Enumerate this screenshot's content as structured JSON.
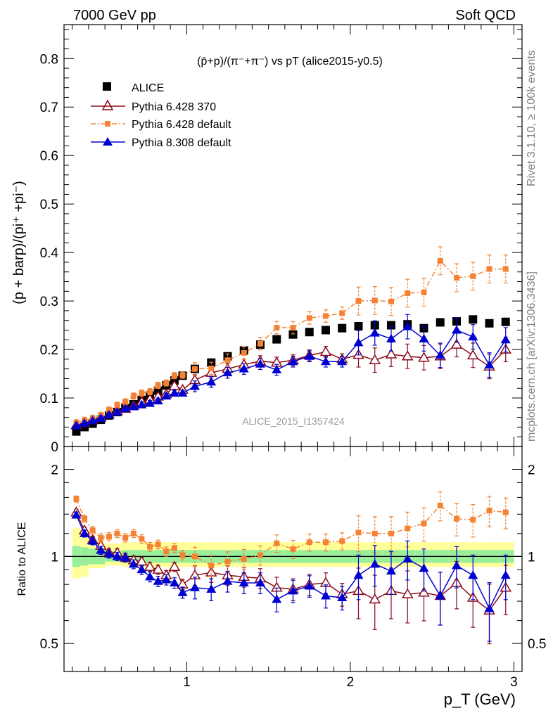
{
  "header": {
    "left": "7000 GeV pp",
    "right": "Soft QCD"
  },
  "side": {
    "rivet": "Rivet 3.1.10, ≥ 100k events",
    "mcplots": "mcplots.cern.ch [arXiv:1306.3436]"
  },
  "watermark": "ALICE_2015_I1357424",
  "legend": {
    "alice": "ALICE",
    "p6370": "Pythia 6.428 370",
    "p6def": "Pythia 6.428 default",
    "p8": "Pythia 8.308 default"
  },
  "colors": {
    "alice": "#000000",
    "p6370": "#8b0a1a",
    "p6def": "#f58232",
    "p8": "#0000d0",
    "band_inner": "#99ee99",
    "band_outer": "#ffff99"
  },
  "chart_data": [
    {
      "type": "scatter",
      "title": "(p̄+p)/(π⁻+π⁻) vs pT (alice2015-y0.5)",
      "xlabel": "p_T (GeV)",
      "ylabel": "(p + barp)/(pi⁺ +pi⁻)",
      "xlim": [
        0.25,
        3.05
      ],
      "ylim": [
        0,
        0.87
      ],
      "yticks": [
        0,
        0.1,
        0.2,
        0.3,
        0.4,
        0.5,
        0.6,
        0.7,
        0.8
      ],
      "ytick_labels": [
        "0",
        "0.1",
        "0.2",
        "0.3",
        "0.4",
        "0.5",
        "0.6",
        "0.7",
        "0.8"
      ],
      "legend_position": "top-left",
      "x": [
        0.325,
        0.375,
        0.425,
        0.475,
        0.525,
        0.575,
        0.625,
        0.675,
        0.725,
        0.775,
        0.825,
        0.875,
        0.925,
        0.975,
        1.05,
        1.15,
        1.25,
        1.35,
        1.45,
        1.55,
        1.65,
        1.75,
        1.85,
        1.95,
        2.05,
        2.15,
        2.25,
        2.35,
        2.45,
        2.55,
        2.65,
        2.75,
        2.85,
        2.95
      ],
      "series": [
        {
          "name": "ALICE",
          "values": [
            0.031,
            0.04,
            0.047,
            0.055,
            0.064,
            0.071,
            0.079,
            0.087,
            0.096,
            0.105,
            0.115,
            0.126,
            0.136,
            0.146,
            0.16,
            0.173,
            0.186,
            0.198,
            0.21,
            0.221,
            0.231,
            0.236,
            0.24,
            0.244,
            0.248,
            0.25,
            0.25,
            0.252,
            0.244,
            0.256,
            0.258,
            0.262,
            0.254,
            0.257
          ]
        },
        {
          "name": "Pythia 6.428 370",
          "values": [
            0.044,
            0.049,
            0.054,
            0.06,
            0.066,
            0.073,
            0.078,
            0.084,
            0.092,
            0.097,
            0.103,
            0.108,
            0.125,
            0.117,
            0.137,
            0.152,
            0.16,
            0.169,
            0.176,
            0.173,
            0.178,
            0.188,
            0.195,
            0.18,
            0.189,
            0.178,
            0.19,
            0.186,
            0.183,
            0.186,
            0.21,
            0.188,
            0.165,
            0.2
          ]
        },
        {
          "name": "Pythia 6.428 default",
          "values": [
            0.049,
            0.054,
            0.058,
            0.064,
            0.075,
            0.085,
            0.092,
            0.104,
            0.11,
            0.113,
            0.126,
            0.131,
            0.146,
            0.147,
            0.16,
            0.161,
            0.178,
            0.193,
            0.212,
            0.245,
            0.245,
            0.265,
            0.269,
            0.275,
            0.3,
            0.301,
            0.299,
            0.316,
            0.318,
            0.383,
            0.348,
            0.351,
            0.366,
            0.366
          ]
        },
        {
          "name": "Pythia 8.308 default",
          "values": [
            0.043,
            0.048,
            0.053,
            0.058,
            0.065,
            0.071,
            0.078,
            0.082,
            0.086,
            0.089,
            0.094,
            0.104,
            0.11,
            0.11,
            0.124,
            0.133,
            0.152,
            0.16,
            0.17,
            0.158,
            0.175,
            0.186,
            0.175,
            0.175,
            0.214,
            0.234,
            0.222,
            0.247,
            0.222,
            0.188,
            0.24,
            0.226,
            0.168,
            0.22
          ]
        }
      ]
    },
    {
      "type": "scatter",
      "title": "",
      "xlabel": "p_T (GeV)",
      "ylabel": "Ratio to ALICE",
      "ylim": [
        0.4,
        2.4
      ],
      "yscale": "log",
      "yticks": [
        0.5,
        1,
        2
      ],
      "ytick_labels": [
        "0.5",
        "1",
        "2"
      ],
      "xticks": [
        1,
        2,
        3
      ],
      "xtick_labels": [
        "1",
        "2",
        "3"
      ],
      "band_inner": [
        0.92,
        0.93,
        0.94,
        0.94,
        0.96,
        0.96,
        0.95,
        0.95,
        0.95,
        0.95,
        0.95,
        0.95,
        0.95,
        0.95,
        0.95,
        0.95,
        0.95,
        0.95,
        0.95,
        0.95,
        0.95,
        0.95,
        0.95,
        0.95,
        0.95,
        0.95,
        0.95,
        0.95,
        0.95,
        0.95,
        0.95,
        0.95,
        0.95,
        0.95
      ],
      "series": [
        {
          "name": "Pythia 6.428 370",
          "values": [
            1.42,
            1.23,
            1.14,
            1.09,
            1.03,
            1.03,
            0.99,
            0.97,
            0.96,
            0.92,
            0.9,
            0.86,
            0.92,
            0.8,
            0.86,
            0.88,
            0.86,
            0.85,
            0.84,
            0.78,
            0.77,
            0.8,
            0.81,
            0.74,
            0.76,
            0.71,
            0.76,
            0.74,
            0.75,
            0.73,
            0.81,
            0.72,
            0.65,
            0.78
          ]
        },
        {
          "name": "Pythia 6.428 default",
          "values": [
            1.58,
            1.35,
            1.23,
            1.16,
            1.17,
            1.2,
            1.16,
            1.2,
            1.15,
            1.08,
            1.1,
            1.04,
            1.07,
            1.01,
            1.0,
            0.93,
            0.96,
            0.98,
            1.01,
            1.11,
            1.06,
            1.12,
            1.12,
            1.13,
            1.21,
            1.2,
            1.2,
            1.25,
            1.3,
            1.5,
            1.35,
            1.34,
            1.44,
            1.42
          ]
        },
        {
          "name": "Pythia 8.308 default",
          "values": [
            1.39,
            1.2,
            1.13,
            1.05,
            1.02,
            1.0,
            0.99,
            0.94,
            0.9,
            0.85,
            0.82,
            0.83,
            0.81,
            0.75,
            0.78,
            0.77,
            0.82,
            0.81,
            0.81,
            0.71,
            0.76,
            0.79,
            0.73,
            0.72,
            0.86,
            0.94,
            0.89,
            0.98,
            0.91,
            0.73,
            0.93,
            0.86,
            0.66,
            0.86
          ]
        }
      ]
    }
  ]
}
